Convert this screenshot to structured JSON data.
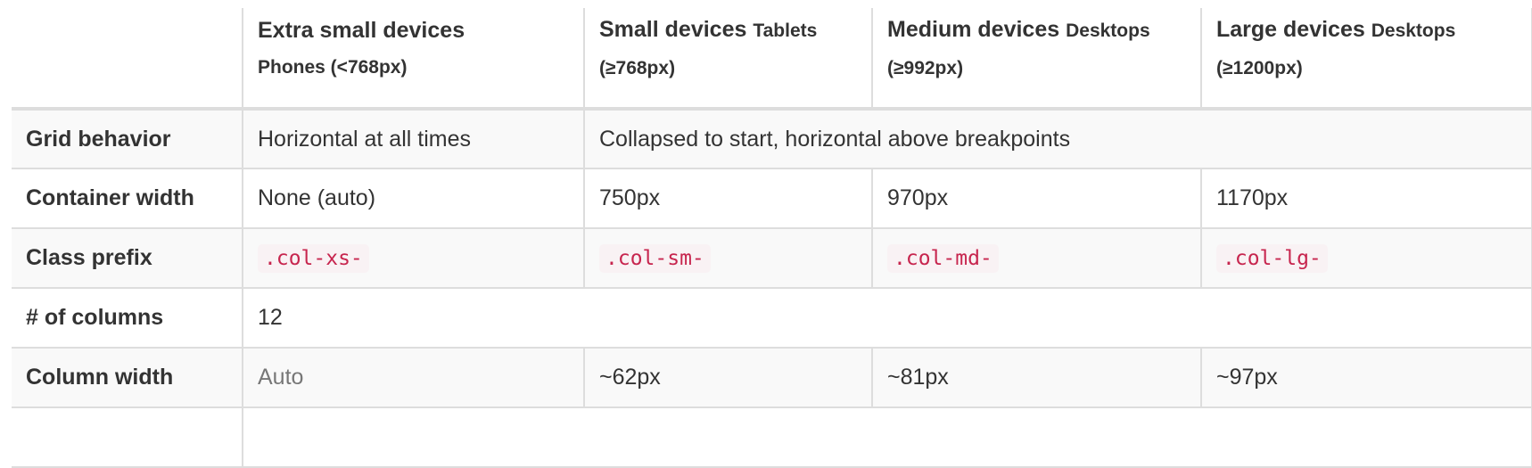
{
  "table": {
    "header": {
      "xs": {
        "main": "Extra small devices",
        "sub": "Phones (<768px)"
      },
      "sm": {
        "main": "Small devices",
        "sub1": "Tablets",
        "sub2": "(≥768px)"
      },
      "md": {
        "main": "Medium devices",
        "sub1": "Desktops",
        "sub2": "(≥992px)"
      },
      "lg": {
        "main": "Large devices",
        "sub1": "Desktops",
        "sub2": "(≥1200px)"
      }
    },
    "rows": {
      "grid_behavior": {
        "label": "Grid behavior",
        "xs": "Horizontal at all times",
        "sm_to_lg": "Collapsed to start, horizontal above breakpoints"
      },
      "container_width": {
        "label": "Container width",
        "xs": "None (auto)",
        "sm": "750px",
        "md": "970px",
        "lg": "1170px"
      },
      "class_prefix": {
        "label": "Class prefix",
        "xs": ".col-xs-",
        "sm": ".col-sm-",
        "md": ".col-md-",
        "lg": ".col-lg-"
      },
      "columns": {
        "label": "# of columns",
        "value": "12"
      },
      "column_width": {
        "label": "Column width",
        "xs": "Auto",
        "sm": "~62px",
        "md": "~81px",
        "lg": "~97px"
      }
    }
  }
}
